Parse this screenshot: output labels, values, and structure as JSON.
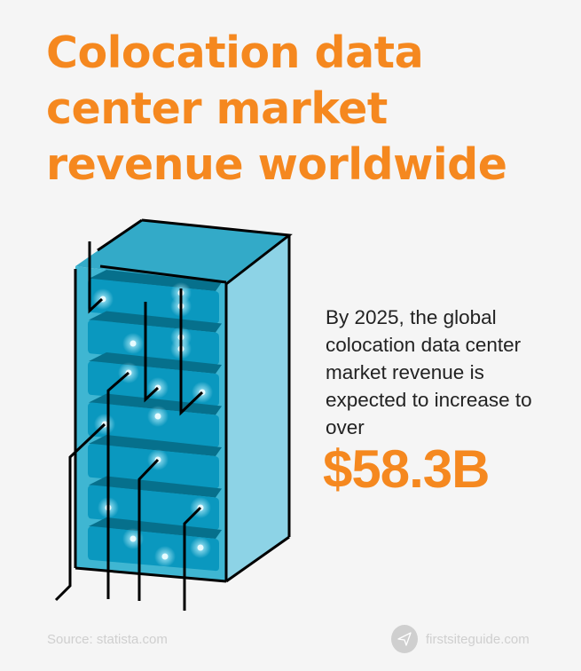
{
  "title": "Colocation data center market revenue worldwide",
  "description": "By 2025, the global colocation data center market revenue is expected to increase to over",
  "highlight_value": "$58.3B",
  "footer": {
    "source": "Source: statista.com",
    "brand": "firstsiteguide.com",
    "brand_icon": "paper-plane-icon"
  },
  "colors": {
    "accent": "#f5881f",
    "rack_front": "#37aecb",
    "rack_side": "#8dd3e6",
    "server": "#0a98bf",
    "server_shadow": "#06708c"
  }
}
